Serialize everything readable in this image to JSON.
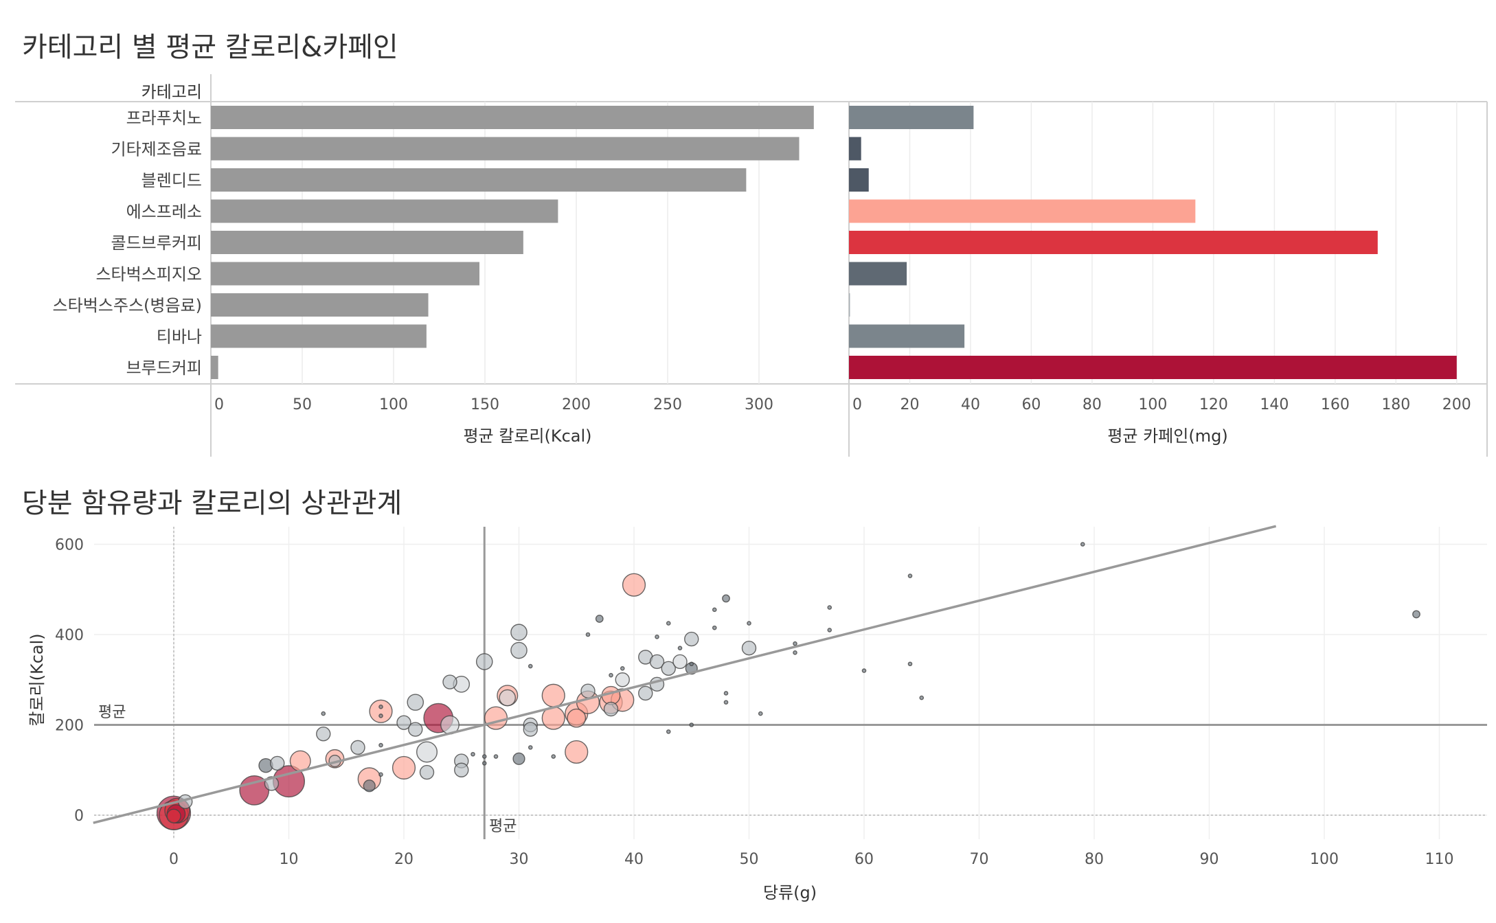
{
  "dashboard": {
    "title1": "카테고리 별 평균 칼로리&카페인",
    "title2": "당분 함유량과 칼로리의 상관관계"
  },
  "chart_data": [
    {
      "type": "bar",
      "orientation": "horizontal",
      "row_header": "카테고리",
      "categories": [
        "프라푸치노",
        "기타제조음료",
        "블렌디드",
        "에스프레소",
        "콜드브루커피",
        "스타벅스피지오",
        "스타벅스주스(병음료)",
        "티바나",
        "브루드커피"
      ],
      "xlabel": "평균 칼로리(Kcal)",
      "xlim": [
        0,
        345
      ],
      "xticks": [
        0,
        50,
        100,
        150,
        200,
        250,
        300
      ],
      "values": [
        330,
        322,
        293,
        190,
        171,
        147,
        119,
        118,
        4
      ],
      "bar_color": "#999999"
    },
    {
      "type": "bar",
      "orientation": "horizontal",
      "categories": [
        "프라푸치노",
        "기타제조음료",
        "블렌디드",
        "에스프레소",
        "콜드브루커피",
        "스타벅스피지오",
        "스타벅스주스(병음료)",
        "티바나",
        "브루드커피"
      ],
      "xlabel": "평균 카페인(mg)",
      "xlim": [
        0,
        210
      ],
      "xticks": [
        0,
        20,
        40,
        60,
        80,
        100,
        120,
        140,
        160,
        180,
        200
      ],
      "values": [
        41,
        4,
        6.5,
        114,
        174,
        19,
        0.3,
        38,
        200
      ],
      "colors": [
        "#7b858c",
        "#4e5865",
        "#4e5865",
        "#fca393",
        "#dc3440",
        "#5f6973",
        "#a8afb4",
        "#7b858c",
        "#ad1237"
      ]
    },
    {
      "type": "scatter",
      "xlabel": "당류(g)",
      "ylabel": "칼로리(Kcal)",
      "xlim": [
        -7,
        114
      ],
      "ylim": [
        -50,
        640
      ],
      "xticks": [
        0,
        10,
        20,
        30,
        40,
        50,
        60,
        70,
        80,
        90,
        100,
        110
      ],
      "yticks": [
        0,
        200,
        400,
        600
      ],
      "reference_lines": {
        "x_mean": 27,
        "y_mean": 200,
        "x_label": "평균",
        "y_label": "평균"
      },
      "trend_line": {
        "x0": -7,
        "y0": -17,
        "x1": 95.8,
        "y1": 640
      },
      "points": [
        {
          "x": 0,
          "y": 5,
          "s": 14,
          "c": "#ad1237"
        },
        {
          "x": 0,
          "y": 0,
          "s": 12,
          "c": "#dc3440"
        },
        {
          "x": 0.3,
          "y": 10,
          "s": 10,
          "c": "#dc3440"
        },
        {
          "x": 0.2,
          "y": 3,
          "s": 7,
          "c": "#ad1237"
        },
        {
          "x": 0,
          "y": -2,
          "s": 5,
          "c": "#dc3440"
        },
        {
          "x": 1,
          "y": 30,
          "s": 5,
          "c": "#b7bdc2"
        },
        {
          "x": 7,
          "y": 55,
          "s": 12,
          "c": "#ad1237"
        },
        {
          "x": 10,
          "y": 75,
          "s": 13,
          "c": "#ad1237"
        },
        {
          "x": 8,
          "y": 110,
          "s": 5,
          "c": "#6a737b"
        },
        {
          "x": 9,
          "y": 115,
          "s": 5,
          "c": "#b7bdc2"
        },
        {
          "x": 8.5,
          "y": 70,
          "s": 5,
          "c": "#b7bdc2"
        },
        {
          "x": 11,
          "y": 120,
          "s": 8,
          "c": "#fca393"
        },
        {
          "x": 13,
          "y": 180,
          "s": 5,
          "c": "#b7bdc2"
        },
        {
          "x": 13,
          "y": 225,
          "s": 1,
          "c": "#6a737b"
        },
        {
          "x": 14,
          "y": 125,
          "s": 7,
          "c": "#fca393"
        },
        {
          "x": 14,
          "y": 120,
          "s": 4,
          "c": "#b7bdc2"
        },
        {
          "x": 16,
          "y": 150,
          "s": 5,
          "c": "#b7bdc2"
        },
        {
          "x": 17,
          "y": 80,
          "s": 9,
          "c": "#fca393"
        },
        {
          "x": 17,
          "y": 65,
          "s": 4,
          "c": "#6a737b"
        },
        {
          "x": 18,
          "y": 230,
          "s": 9,
          "c": "#fca393"
        },
        {
          "x": 18,
          "y": 240,
          "s": 1,
          "c": "#6a737b"
        },
        {
          "x": 18,
          "y": 220,
          "s": 1,
          "c": "#6a737b"
        },
        {
          "x": 18,
          "y": 155,
          "s": 1,
          "c": "#6a737b"
        },
        {
          "x": 18,
          "y": 90,
          "s": 1,
          "c": "#6a737b"
        },
        {
          "x": 20,
          "y": 105,
          "s": 9,
          "c": "#fca393"
        },
        {
          "x": 20,
          "y": 205,
          "s": 5,
          "c": "#b7bdc2"
        },
        {
          "x": 21,
          "y": 250,
          "s": 6,
          "c": "#b7bdc2"
        },
        {
          "x": 21,
          "y": 190,
          "s": 5,
          "c": "#b7bdc2"
        },
        {
          "x": 22,
          "y": 140,
          "s": 8,
          "c": "#d2d6d9"
        },
        {
          "x": 22,
          "y": 95,
          "s": 5,
          "c": "#b7bdc2"
        },
        {
          "x": 23,
          "y": 215,
          "s": 12,
          "c": "#ad1237"
        },
        {
          "x": 24,
          "y": 295,
          "s": 5,
          "c": "#b7bdc2"
        },
        {
          "x": 24,
          "y": 200,
          "s": 7,
          "c": "#d2d6d9"
        },
        {
          "x": 25,
          "y": 290,
          "s": 6,
          "c": "#d2d6d9"
        },
        {
          "x": 25,
          "y": 120,
          "s": 5,
          "c": "#b7bdc2"
        },
        {
          "x": 25,
          "y": 100,
          "s": 5,
          "c": "#b7bdc2"
        },
        {
          "x": 26,
          "y": 135,
          "s": 1,
          "c": "#6a737b"
        },
        {
          "x": 27,
          "y": 340,
          "s": 6,
          "c": "#b7bdc2"
        },
        {
          "x": 27,
          "y": 130,
          "s": 1,
          "c": "#6a737b"
        },
        {
          "x": 27,
          "y": 115,
          "s": 1,
          "c": "#6a737b"
        },
        {
          "x": 28,
          "y": 130,
          "s": 1,
          "c": "#6a737b"
        },
        {
          "x": 28,
          "y": 215,
          "s": 9,
          "c": "#fca393"
        },
        {
          "x": 29,
          "y": 265,
          "s": 8,
          "c": "#fca393"
        },
        {
          "x": 29,
          "y": 260,
          "s": 6,
          "c": "#d2d6d9"
        },
        {
          "x": 30,
          "y": 405,
          "s": 6,
          "c": "#b7bdc2"
        },
        {
          "x": 30,
          "y": 365,
          "s": 6,
          "c": "#b7bdc2"
        },
        {
          "x": 30,
          "y": 125,
          "s": 4,
          "c": "#6a737b"
        },
        {
          "x": 31,
          "y": 330,
          "s": 1,
          "c": "#6a737b"
        },
        {
          "x": 31,
          "y": 200,
          "s": 5,
          "c": "#b7bdc2"
        },
        {
          "x": 31,
          "y": 190,
          "s": 5,
          "c": "#b7bdc2"
        },
        {
          "x": 31,
          "y": 150,
          "s": 1,
          "c": "#6a737b"
        },
        {
          "x": 33,
          "y": 265,
          "s": 9,
          "c": "#fca393"
        },
        {
          "x": 33,
          "y": 215,
          "s": 9,
          "c": "#fca393"
        },
        {
          "x": 33,
          "y": 130,
          "s": 1,
          "c": "#6a737b"
        },
        {
          "x": 35,
          "y": 225,
          "s": 9,
          "c": "#fca393"
        },
        {
          "x": 35,
          "y": 215,
          "s": 7,
          "c": "#fca393"
        },
        {
          "x": 35,
          "y": 140,
          "s": 9,
          "c": "#fca393"
        },
        {
          "x": 36,
          "y": 275,
          "s": 5,
          "c": "#b7bdc2"
        },
        {
          "x": 36,
          "y": 250,
          "s": 9,
          "c": "#fca393"
        },
        {
          "x": 36,
          "y": 400,
          "s": 1,
          "c": "#6a737b"
        },
        {
          "x": 37,
          "y": 435,
          "s": 2,
          "c": "#6a737b"
        },
        {
          "x": 38,
          "y": 265,
          "s": 7,
          "c": "#fca393"
        },
        {
          "x": 38,
          "y": 250,
          "s": 9,
          "c": "#fca393"
        },
        {
          "x": 38,
          "y": 235,
          "s": 5,
          "c": "#b7bdc2"
        },
        {
          "x": 38,
          "y": 310,
          "s": 1,
          "c": "#6a737b"
        },
        {
          "x": 39,
          "y": 255,
          "s": 9,
          "c": "#fca393"
        },
        {
          "x": 39,
          "y": 300,
          "s": 5,
          "c": "#d2d6d9"
        },
        {
          "x": 39,
          "y": 325,
          "s": 1,
          "c": "#6a737b"
        },
        {
          "x": 40,
          "y": 510,
          "s": 9,
          "c": "#fca393"
        },
        {
          "x": 41,
          "y": 350,
          "s": 5,
          "c": "#b7bdc2"
        },
        {
          "x": 41,
          "y": 270,
          "s": 5,
          "c": "#b7bdc2"
        },
        {
          "x": 42,
          "y": 340,
          "s": 5,
          "c": "#b7bdc2"
        },
        {
          "x": 42,
          "y": 290,
          "s": 5,
          "c": "#b7bdc2"
        },
        {
          "x": 42,
          "y": 395,
          "s": 1,
          "c": "#6a737b"
        },
        {
          "x": 43,
          "y": 325,
          "s": 5,
          "c": "#b7bdc2"
        },
        {
          "x": 43,
          "y": 425,
          "s": 1,
          "c": "#6a737b"
        },
        {
          "x": 43,
          "y": 185,
          "s": 1,
          "c": "#6a737b"
        },
        {
          "x": 44,
          "y": 340,
          "s": 5,
          "c": "#d2d6d9"
        },
        {
          "x": 44,
          "y": 370,
          "s": 1,
          "c": "#6a737b"
        },
        {
          "x": 45,
          "y": 390,
          "s": 5,
          "c": "#b7bdc2"
        },
        {
          "x": 45,
          "y": 325,
          "s": 4,
          "c": "#6a737b"
        },
        {
          "x": 45,
          "y": 335,
          "s": 1,
          "c": "#6a737b"
        },
        {
          "x": 45,
          "y": 200,
          "s": 1,
          "c": "#6a737b"
        },
        {
          "x": 47,
          "y": 455,
          "s": 1,
          "c": "#6a737b"
        },
        {
          "x": 47,
          "y": 415,
          "s": 1,
          "c": "#6a737b"
        },
        {
          "x": 48,
          "y": 480,
          "s": 2,
          "c": "#6a737b"
        },
        {
          "x": 48,
          "y": 270,
          "s": 1,
          "c": "#6a737b"
        },
        {
          "x": 48,
          "y": 250,
          "s": 1,
          "c": "#6a737b"
        },
        {
          "x": 50,
          "y": 370,
          "s": 5,
          "c": "#b7bdc2"
        },
        {
          "x": 50,
          "y": 425,
          "s": 1,
          "c": "#6a737b"
        },
        {
          "x": 51,
          "y": 225,
          "s": 1,
          "c": "#6a737b"
        },
        {
          "x": 54,
          "y": 380,
          "s": 1,
          "c": "#6a737b"
        },
        {
          "x": 54,
          "y": 360,
          "s": 1,
          "c": "#6a737b"
        },
        {
          "x": 57,
          "y": 460,
          "s": 1,
          "c": "#6a737b"
        },
        {
          "x": 57,
          "y": 410,
          "s": 1,
          "c": "#6a737b"
        },
        {
          "x": 60,
          "y": 320,
          "s": 1,
          "c": "#6a737b"
        },
        {
          "x": 64,
          "y": 530,
          "s": 1,
          "c": "#6a737b"
        },
        {
          "x": 64,
          "y": 335,
          "s": 1,
          "c": "#6a737b"
        },
        {
          "x": 65,
          "y": 260,
          "s": 1,
          "c": "#6a737b"
        },
        {
          "x": 79,
          "y": 600,
          "s": 1,
          "c": "#6a737b"
        },
        {
          "x": 108,
          "y": 445,
          "s": 2,
          "c": "#6a737b"
        }
      ]
    }
  ]
}
